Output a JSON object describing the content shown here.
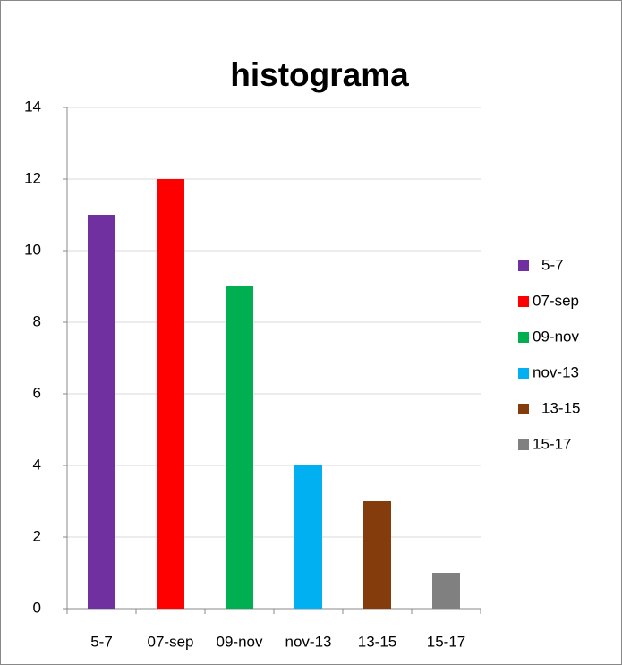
{
  "chart_data": {
    "type": "bar",
    "title": "histograma",
    "categories": [
      "5-7",
      "07-sep",
      "09-nov",
      "nov-13",
      "13-15",
      "15-17"
    ],
    "values": [
      11,
      12,
      9,
      4,
      3,
      1
    ],
    "colors": [
      "#7030a0",
      "#ff0000",
      "#00b050",
      "#00b0f0",
      "#843c0c",
      "#808080"
    ],
    "ylim": [
      0,
      14
    ],
    "yticks": [
      0,
      2,
      4,
      6,
      8,
      10,
      12,
      14
    ],
    "grid": true,
    "legend": "right"
  }
}
